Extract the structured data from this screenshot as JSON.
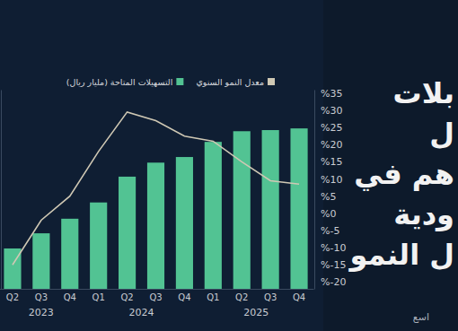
{
  "chart_data": {
    "type": "bar",
    "title": [
      "بلات",
      "ل",
      "هم في",
      "ودية",
      "ل النمو"
    ],
    "subtitle": "اسع",
    "categories": [
      "Q2",
      "Q3",
      "Q4",
      "Q1",
      "Q2",
      "Q3",
      "Q4",
      "Q1",
      "Q2",
      "Q3",
      "Q4"
    ],
    "x_groups": [
      "2023",
      "2023",
      "2023",
      "2024",
      "2024",
      "2024",
      "2024",
      "2025",
      "2025",
      "2025",
      "2025"
    ],
    "series": [
      {
        "name": "التسهيلات المتاحة (مليار ريال)",
        "type": "bar",
        "color": "#52c393",
        "axis": "y2",
        "values": [
          7.2,
          9.9,
          12.5,
          15.4,
          20.0,
          22.5,
          23.5,
          26.2,
          28.1,
          28.3,
          28.6
        ]
      },
      {
        "name": "معدل النمو السنوي",
        "type": "line",
        "color": "#cfc8b4",
        "values": [
          -15,
          -2,
          5,
          18,
          29.5,
          27,
          22.5,
          21,
          15,
          9.5,
          8.5
        ]
      }
    ],
    "ylim": [
      -22,
      36
    ],
    "yticks": [
      {
        "value": 35,
        "label": "%35"
      },
      {
        "value": 30,
        "label": "%30"
      },
      {
        "value": 25,
        "label": "%25"
      },
      {
        "value": 20,
        "label": "%20"
      },
      {
        "value": 15,
        "label": "%15"
      },
      {
        "value": 10,
        "label": "%10"
      },
      {
        "value": 5,
        "label": "%5"
      },
      {
        "value": 0,
        "label": "%0"
      },
      {
        "value": -5,
        "label": "%-5"
      },
      {
        "value": -10,
        "label": "%-10"
      },
      {
        "value": -15,
        "label": "%-15"
      },
      {
        "value": -20,
        "label": "%-20"
      }
    ],
    "y2lim": [
      0,
      35.5
    ],
    "y2ticks": [],
    "legend": "top",
    "grid": false
  }
}
